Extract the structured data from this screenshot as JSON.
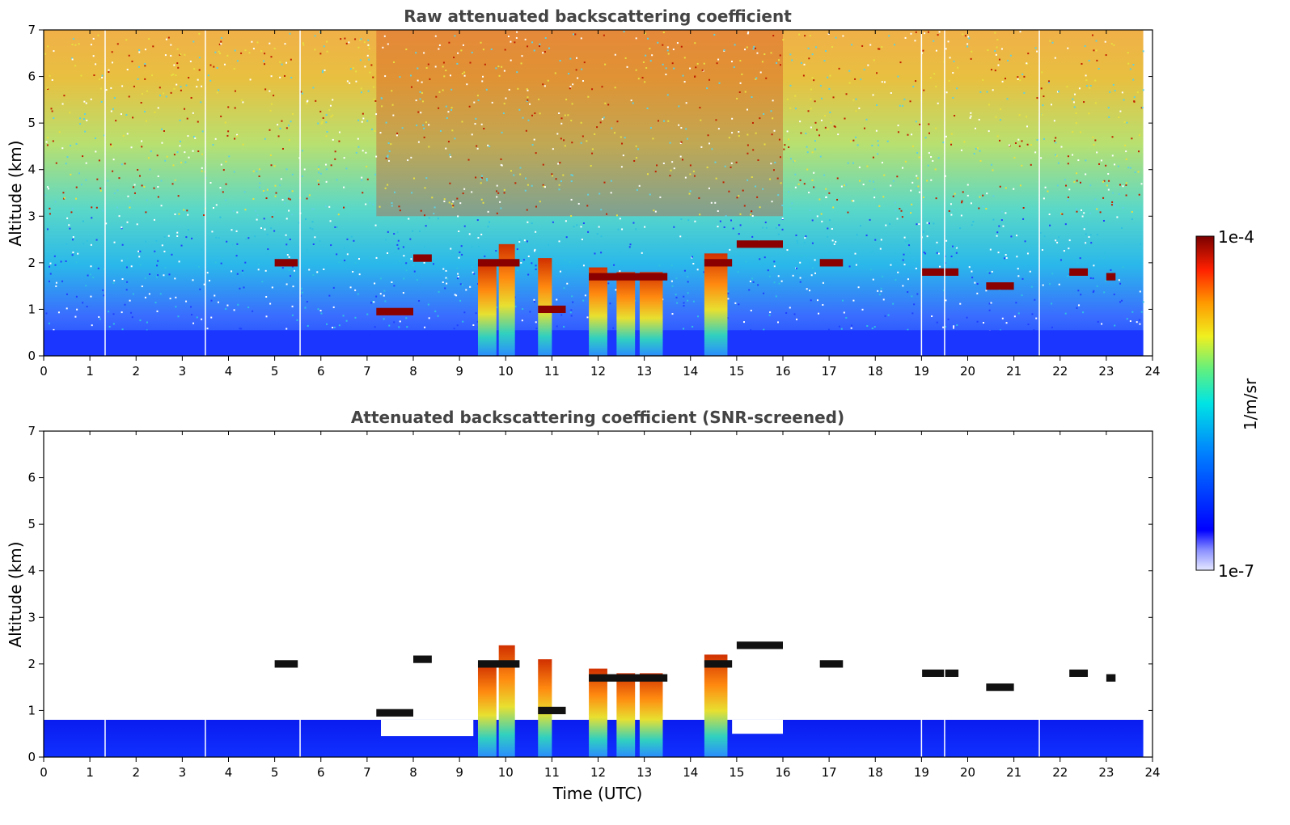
{
  "chart_data": [
    {
      "type": "heatmap",
      "title": "Raw attenuated backscattering coefficient",
      "xlabel": "",
      "ylabel": "Altitude (km)",
      "xlim": [
        0,
        24
      ],
      "ylim": [
        0,
        7
      ],
      "xticks": [
        0,
        1,
        2,
        3,
        4,
        5,
        6,
        7,
        8,
        9,
        10,
        11,
        12,
        13,
        14,
        15,
        16,
        17,
        18,
        19,
        20,
        21,
        22,
        23,
        24
      ],
      "yticks": [
        0,
        1,
        2,
        3,
        4,
        5,
        6,
        7
      ],
      "data_gaps_utc": [
        1.33,
        3.5,
        5.55,
        19.0,
        19.5,
        21.55
      ],
      "cloud_features": [
        {
          "t_start": 5.0,
          "t_end": 5.5,
          "alt_km": 2.0
        },
        {
          "t_start": 7.2,
          "t_end": 8.0,
          "alt_km": 0.95
        },
        {
          "t_start": 8.0,
          "t_end": 8.4,
          "alt_km": 2.1
        },
        {
          "t_start": 9.4,
          "t_end": 10.3,
          "alt_km": 2.0
        },
        {
          "t_start": 10.7,
          "t_end": 11.3,
          "alt_km": 1.0
        },
        {
          "t_start": 11.8,
          "t_end": 13.5,
          "alt_km": 1.7
        },
        {
          "t_start": 14.3,
          "t_end": 14.9,
          "alt_km": 2.0
        },
        {
          "t_start": 15.0,
          "t_end": 16.0,
          "alt_km": 2.4
        },
        {
          "t_start": 16.8,
          "t_end": 17.3,
          "alt_km": 2.0
        },
        {
          "t_start": 19.0,
          "t_end": 19.8,
          "alt_km": 1.8
        },
        {
          "t_start": 20.4,
          "t_end": 21.0,
          "alt_km": 1.5
        },
        {
          "t_start": 22.2,
          "t_end": 22.6,
          "alt_km": 1.8
        },
        {
          "t_start": 23.0,
          "t_end": 23.2,
          "alt_km": 1.7
        }
      ],
      "precip_columns": [
        {
          "t_start": 9.4,
          "t_end": 9.8,
          "top_km": 2.0
        },
        {
          "t_start": 9.85,
          "t_end": 10.2,
          "top_km": 2.4
        },
        {
          "t_start": 10.7,
          "t_end": 11.0,
          "top_km": 2.1
        },
        {
          "t_start": 11.8,
          "t_end": 12.2,
          "top_km": 1.9
        },
        {
          "t_start": 12.4,
          "t_end": 12.8,
          "top_km": 1.8
        },
        {
          "t_start": 12.9,
          "t_end": 13.4,
          "top_km": 1.8
        },
        {
          "t_start": 14.3,
          "t_end": 14.8,
          "top_km": 2.2
        }
      ]
    },
    {
      "type": "heatmap",
      "title": "Attenuated backscattering coefficient (SNR-screened)",
      "xlabel": "Time (UTC)",
      "ylabel": "Altitude (km)",
      "xlim": [
        0,
        24
      ],
      "ylim": [
        0,
        7
      ],
      "xticks": [
        0,
        1,
        2,
        3,
        4,
        5,
        6,
        7,
        8,
        9,
        10,
        11,
        12,
        13,
        14,
        15,
        16,
        17,
        18,
        19,
        20,
        21,
        22,
        23,
        24
      ],
      "yticks": [
        0,
        1,
        2,
        3,
        4,
        5,
        6,
        7
      ],
      "boundary_layer_top_km": 0.8
    }
  ],
  "colorbar": {
    "label": "1/m/sr",
    "max_label": "1e-4",
    "min_label": "1e-7",
    "scale": "log",
    "range": [
      1e-07,
      0.0001
    ]
  },
  "colors": {
    "low": "#0000ff",
    "mid_low": "#00e0e0",
    "mid": "#e6f03c",
    "mid_high": "#ff8000",
    "high": "#7a0000"
  }
}
